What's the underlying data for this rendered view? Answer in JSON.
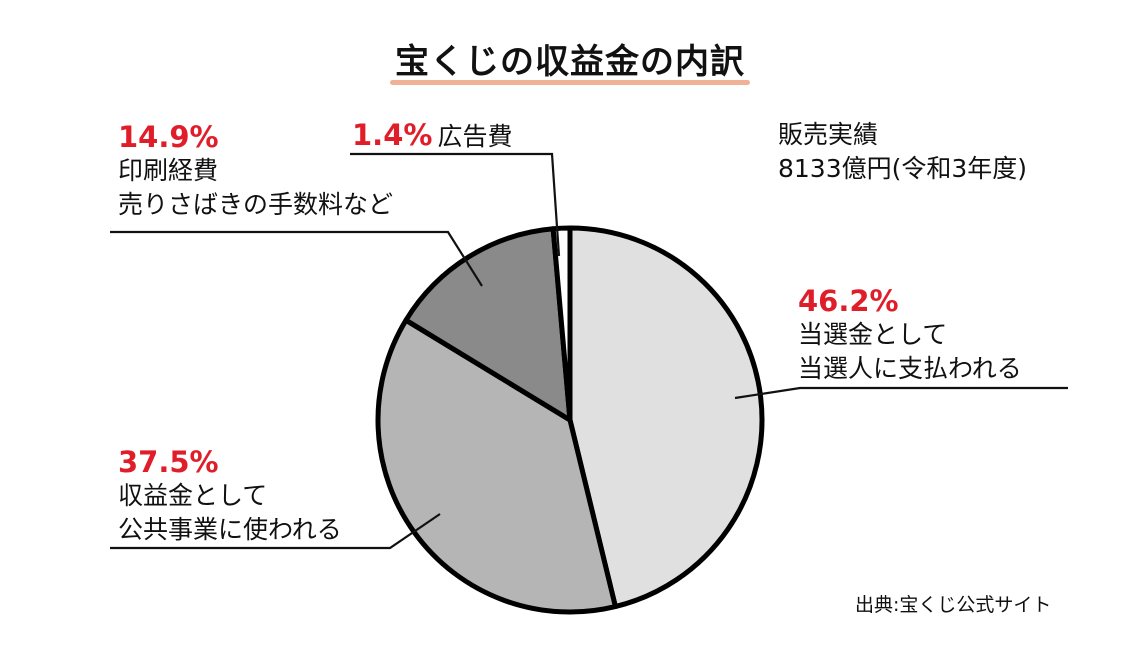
{
  "chart_data": {
    "type": "pie",
    "title": "宝くじの収益金の内訳",
    "start_angle": "12 o'clock",
    "direction": "clockwise",
    "slices": [
      {
        "value": 46.2,
        "pct_label": "46.2%",
        "lines": [
          "当選金として",
          "当選人に支払われる"
        ],
        "color": "#e0e0e0"
      },
      {
        "value": 37.5,
        "pct_label": "37.5%",
        "lines": [
          "収益金として",
          "公共事業に使われる"
        ],
        "color": "#b5b5b5"
      },
      {
        "value": 14.9,
        "pct_label": "14.9%",
        "lines": [
          "印刷経費",
          "売りさばきの手数料など"
        ],
        "color": "#8a8a8a"
      },
      {
        "value": 1.4,
        "pct_label": "1.4%",
        "lines": [
          "広告費"
        ],
        "color": "#ffffff"
      }
    ],
    "annotation": [
      "販売実績",
      "8133億円(令和3年度)"
    ],
    "source": "出典:宝くじ公式サイト",
    "colors": {
      "percent_text": "#e01e2a",
      "title_underline": "#f0b296",
      "outline": "#000000"
    }
  }
}
